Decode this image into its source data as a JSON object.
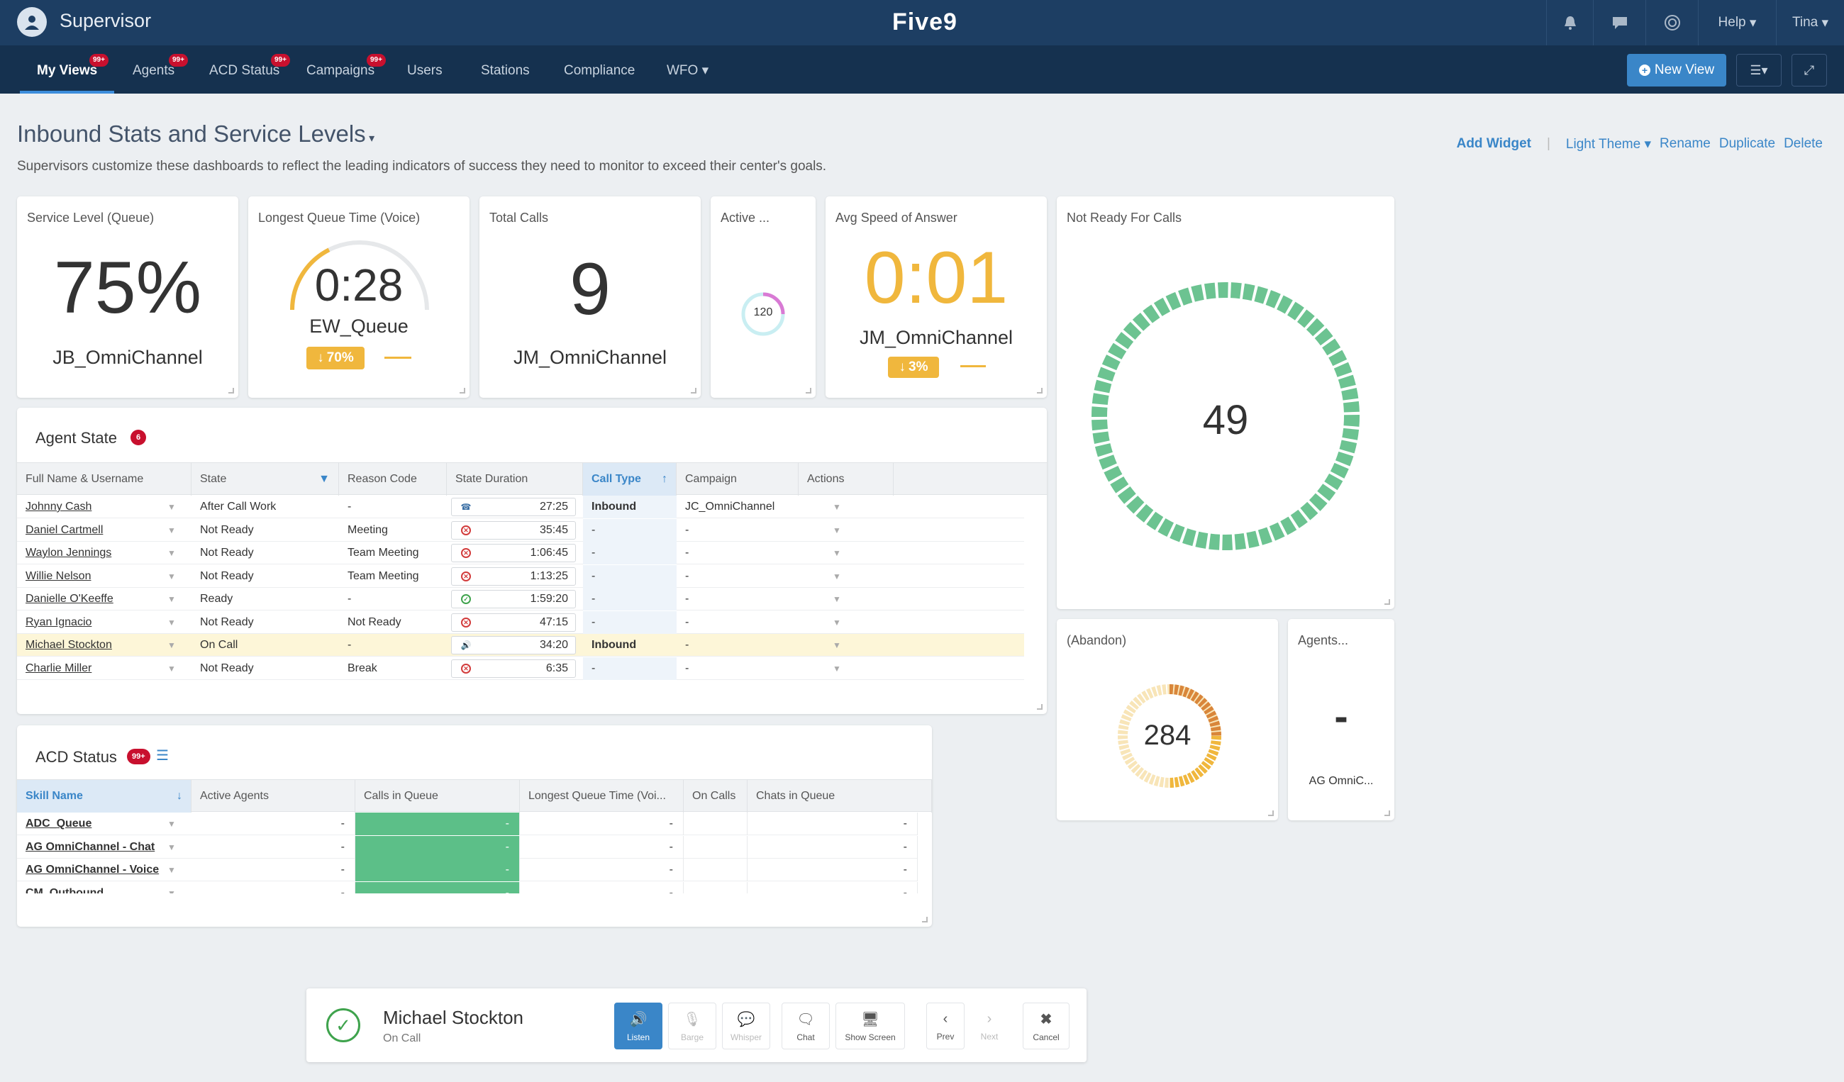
{
  "topbar": {
    "title": "Supervisor",
    "logo": "Five9",
    "help": "Help",
    "user": "Tina"
  },
  "nav": {
    "items": [
      {
        "label": "My Views",
        "badge": "99+"
      },
      {
        "label": "Agents",
        "badge": "99+"
      },
      {
        "label": "ACD Status",
        "badge": "99+"
      },
      {
        "label": "Campaigns",
        "badge": "99+"
      },
      {
        "label": "Users"
      },
      {
        "label": "Stations"
      },
      {
        "label": "Compliance"
      },
      {
        "label": "WFO"
      }
    ],
    "new_view": "New View"
  },
  "page": {
    "title": "Inbound Stats and Service Levels",
    "subtitle": "Supervisors customize these dashboards to reflect the leading indicators of success they need to monitor to exceed their center's goals.",
    "actions": {
      "add_widget": "Add Widget",
      "theme": "Light Theme",
      "rename": "Rename",
      "duplicate": "Duplicate",
      "delete": "Delete"
    }
  },
  "widgets": {
    "service_level": {
      "title": "Service Level (Queue)",
      "value": "75%",
      "queue": "JB_OmniChannel"
    },
    "longest_queue": {
      "title": "Longest Queue Time (Voice)",
      "value": "0:28",
      "queue": "EW_Queue",
      "trend": "70%",
      "gauge_fraction": 0.35
    },
    "total_calls": {
      "title": "Total Calls",
      "value": "9",
      "queue": "JM_OmniChannel"
    },
    "active": {
      "title": "Active ...",
      "value": "120"
    },
    "avg_speed": {
      "title": "Avg Speed of Answer",
      "value": "0:01",
      "queue": "JM_OmniChannel",
      "trend": "3%"
    },
    "not_ready": {
      "title": "Not Ready For Calls",
      "value": "49"
    },
    "abandon": {
      "title": "(Abandon)",
      "value": "284"
    },
    "agents": {
      "title": "Agents...",
      "value": "-",
      "queue": "AG OmniC..."
    }
  },
  "agent_state": {
    "title": "Agent State",
    "badge": "6",
    "columns": [
      "Full Name & Username",
      "State",
      "Reason Code",
      "State Duration",
      "Call Type",
      "Campaign",
      "Actions"
    ],
    "rows": [
      {
        "name": "Johnny Cash",
        "state": "After Call Work",
        "reason": "-",
        "icon": "phone",
        "duration": "27:25",
        "call_type": "Inbound",
        "campaign": "JC_OmniChannel"
      },
      {
        "name": "Daniel Cartmell",
        "state": "Not Ready",
        "reason": "Meeting",
        "icon": "x",
        "duration": "35:45",
        "call_type": "-",
        "campaign": "-"
      },
      {
        "name": "Waylon Jennings",
        "state": "Not Ready",
        "reason": "Team Meeting",
        "icon": "x",
        "duration": "1:06:45",
        "call_type": "-",
        "campaign": "-"
      },
      {
        "name": "Willie Nelson",
        "state": "Not Ready",
        "reason": "Team Meeting",
        "icon": "x",
        "duration": "1:13:25",
        "call_type": "-",
        "campaign": "-"
      },
      {
        "name": "Danielle O'Keeffe",
        "state": "Ready",
        "reason": "-",
        "icon": "ok",
        "duration": "1:59:20",
        "call_type": "-",
        "campaign": "-"
      },
      {
        "name": "Ryan Ignacio",
        "state": "Not Ready",
        "reason": "Not Ready",
        "icon": "x",
        "duration": "47:15",
        "call_type": "-",
        "campaign": "-"
      },
      {
        "name": "Michael Stockton",
        "state": "On Call",
        "reason": "-",
        "icon": "speaker",
        "duration": "34:20",
        "call_type": "Inbound",
        "campaign": "-",
        "selected": true
      },
      {
        "name": "Charlie Miller",
        "state": "Not Ready",
        "reason": "Break",
        "icon": "x",
        "duration": "6:35",
        "call_type": "-",
        "campaign": "-"
      }
    ]
  },
  "acd_status": {
    "title": "ACD Status",
    "badge": "99+",
    "columns": [
      "Skill Name",
      "Active Agents",
      "Calls in Queue",
      "Longest Queue Time (Voi...",
      "On Calls",
      "Chats in Queue"
    ],
    "rows": [
      {
        "skill": "ADC_Queue",
        "cells": [
          "-",
          "-",
          "-",
          "",
          "-"
        ]
      },
      {
        "skill": "AG OmniChannel - Chat",
        "cells": [
          "-",
          "-",
          "-",
          "",
          "-"
        ]
      },
      {
        "skill": "AG OmniChannel - Voice",
        "cells": [
          "-",
          "-",
          "-",
          "",
          "-"
        ]
      },
      {
        "skill": "CM_Outbound",
        "cells": [
          "-",
          "-",
          "-",
          "",
          "-"
        ]
      }
    ]
  },
  "bottom_bar": {
    "agent": "Michael Stockton",
    "status": "On Call",
    "controls": [
      "Listen",
      "Barge",
      "Whisper",
      "Chat",
      "Show Screen",
      "Prev",
      "Next",
      "Cancel"
    ]
  },
  "colors": {
    "accent": "#3a86c8",
    "green": "#5cbf88",
    "yellow": "#f0b73d",
    "orange": "#d9863a",
    "nav_bg": "#15314f",
    "top_bg": "#1d3e63"
  }
}
